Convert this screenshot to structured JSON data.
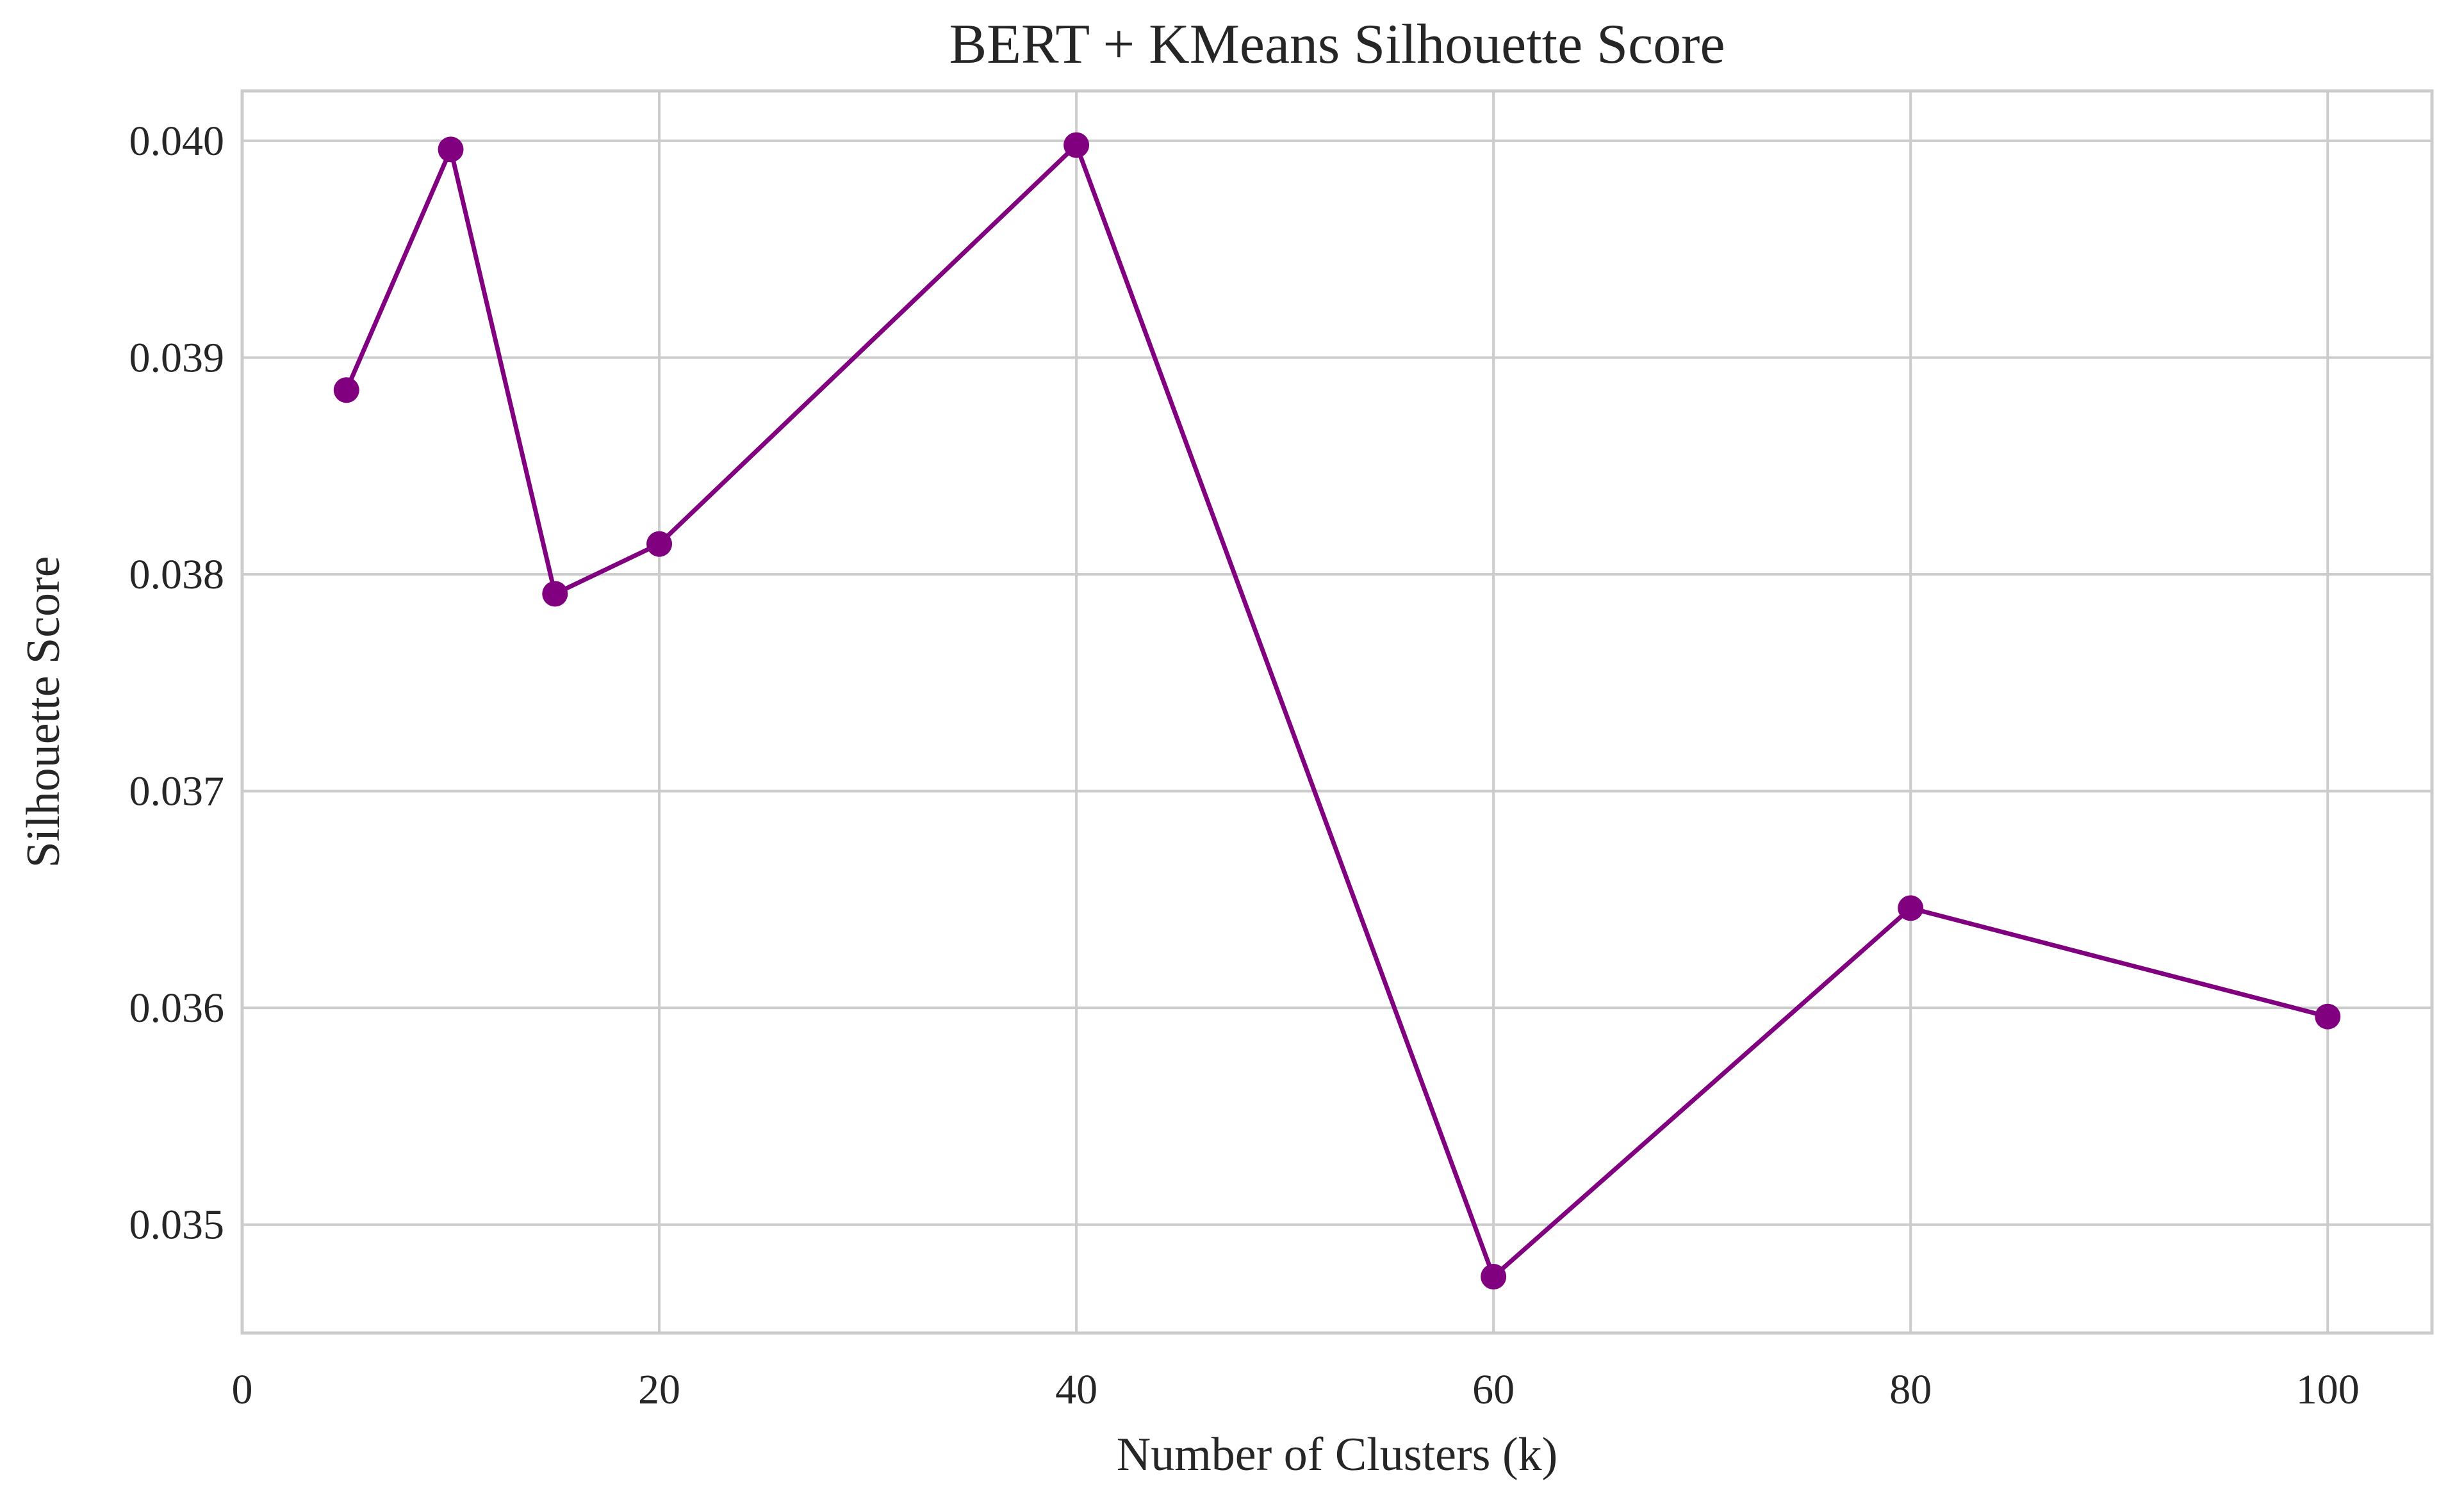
{
  "chart_data": {
    "type": "line",
    "title": "BERT + KMeans Silhouette Score",
    "xlabel": "Number of Clusters (k)",
    "ylabel": "Silhouette Score",
    "xlim": [
      0,
      105
    ],
    "ylim": [
      0.0345,
      0.04023
    ],
    "xticks": [
      0,
      20,
      40,
      60,
      80,
      100
    ],
    "yticks": [
      0.035,
      0.036,
      0.037,
      0.038,
      0.039,
      0.04
    ],
    "ytick_labels": [
      "0.035",
      "0.036",
      "0.037",
      "0.038",
      "0.039",
      "0.040"
    ],
    "grid": true,
    "line_color": "#800080",
    "marker": "circle",
    "series": [
      {
        "x": [
          5,
          10,
          15,
          20,
          40,
          60,
          80,
          100
        ],
        "y": [
          0.03885,
          0.03996,
          0.03791,
          0.03814,
          0.03998,
          0.03476,
          0.03646,
          0.03596
        ]
      }
    ]
  }
}
